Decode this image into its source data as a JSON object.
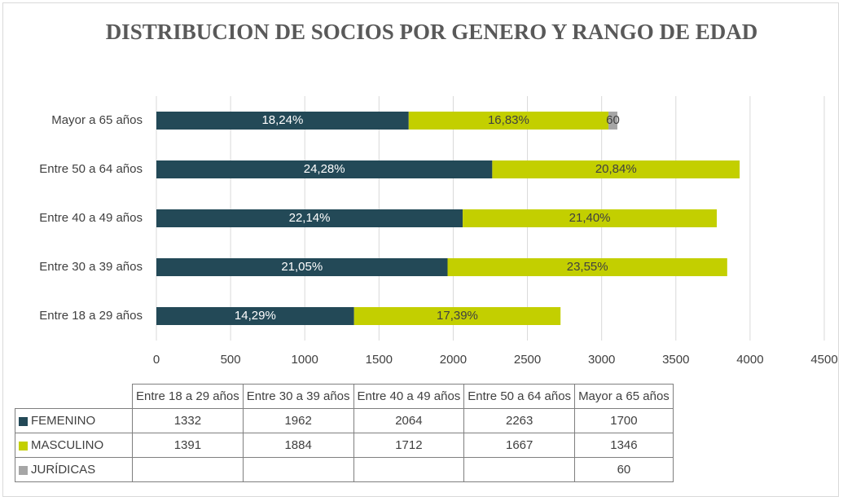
{
  "chart_data": {
    "type": "bar",
    "orientation": "horizontal",
    "stacked": true,
    "title": "DISTRIBUCION DE SOCIOS POR GENERO Y RANGO DE EDAD",
    "categories": [
      "Entre 18 a 29 años",
      "Entre 30 a 39 años",
      "Entre 40 a 49 años",
      "Entre 50 a 64 años",
      "Mayor a 65 años"
    ],
    "series": [
      {
        "name": "FEMENINO",
        "color": "#234957",
        "label_color": "#ffffff",
        "values": [
          1332,
          1962,
          2064,
          2263,
          1700
        ],
        "value_labels": [
          "14,29%",
          "21,05%",
          "22,14%",
          "24,28%",
          "18,24%"
        ]
      },
      {
        "name": "MASCULINO",
        "color": "#c3cf00",
        "label_color": "#404040",
        "values": [
          1391,
          1884,
          1712,
          1667,
          1346
        ],
        "value_labels": [
          "17,39%",
          "23,55%",
          "21,40%",
          "20,84%",
          "16,83%"
        ]
      },
      {
        "name": "JURÍDICAS",
        "color": "#a6a6a6",
        "label_color": "#404040",
        "values": [
          null,
          null,
          null,
          null,
          60
        ],
        "value_labels": [
          null,
          null,
          null,
          null,
          "60"
        ]
      }
    ],
    "xlim": [
      0,
      4500
    ],
    "xticks": [
      0,
      500,
      1000,
      1500,
      2000,
      2500,
      3000,
      3500,
      4000,
      4500
    ],
    "grid": true,
    "data_table": true
  }
}
